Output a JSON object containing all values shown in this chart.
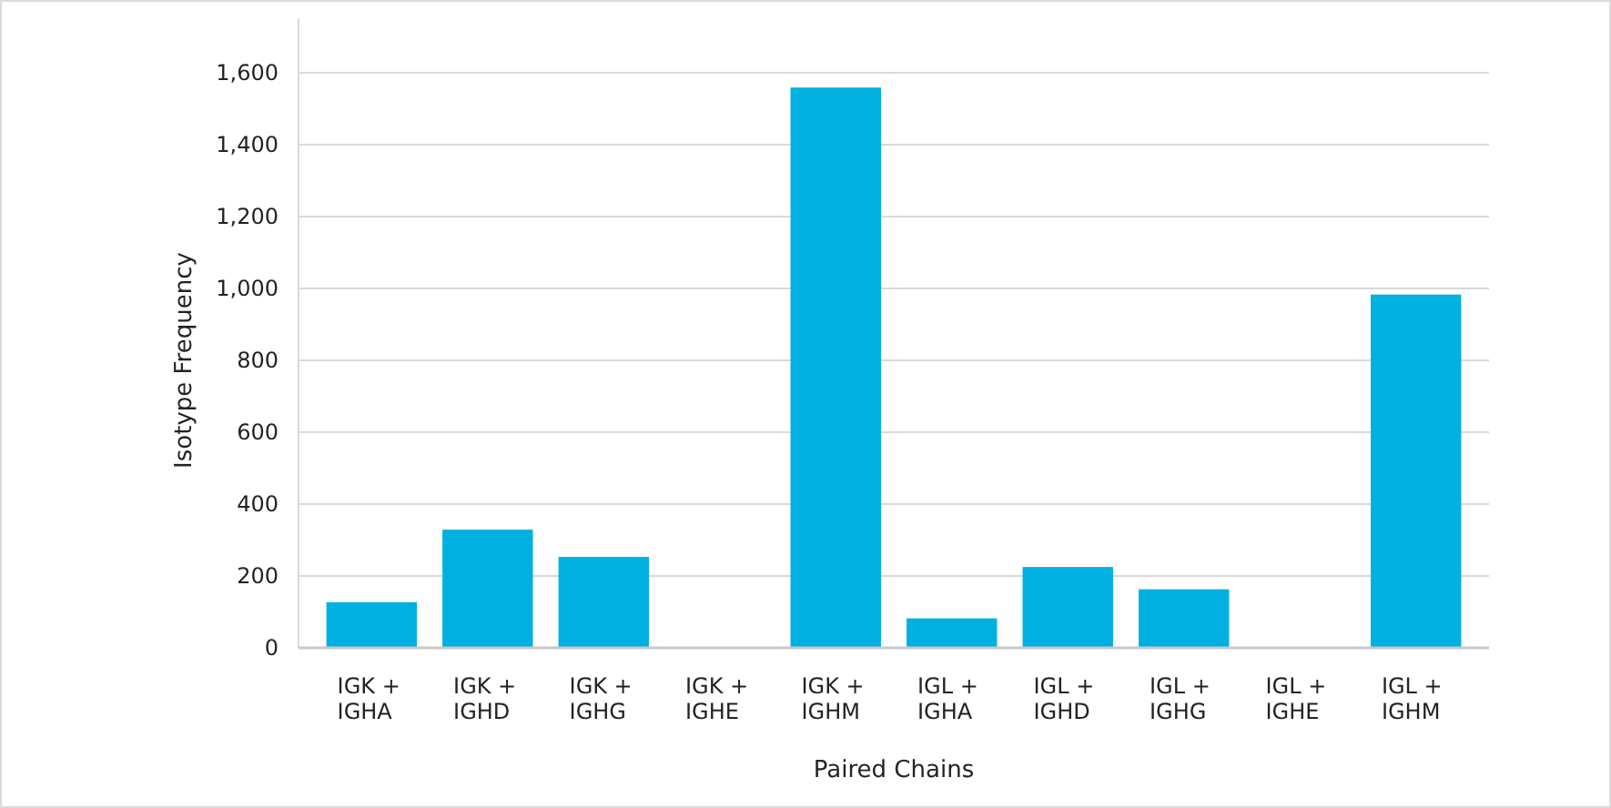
{
  "chart_data": {
    "type": "bar",
    "xlabel": "Paired Chains",
    "ylabel": "Isotype Frequency",
    "categories": [
      "IGK + IGHA",
      "IGK + IGHD",
      "IGK + IGHG",
      "IGK + IGHE",
      "IGK + IGHM",
      "IGL + IGHA",
      "IGL + IGHD",
      "IGL + IGHG",
      "IGL + IGHE",
      "IGL + IGHM"
    ],
    "values": [
      127,
      329,
      253,
      0,
      1559,
      82,
      225,
      163,
      0,
      983
    ],
    "color": "#00b0e0",
    "ylim": [
      0,
      1600
    ],
    "yticks": [
      {
        "value": 0,
        "label": "0"
      },
      {
        "value": 200,
        "label": "200"
      },
      {
        "value": 400,
        "label": "400"
      },
      {
        "value": 600,
        "label": "600"
      },
      {
        "value": 800,
        "label": "800"
      },
      {
        "value": 1000,
        "label": "1,000"
      },
      {
        "value": 1200,
        "label": "1,200"
      },
      {
        "value": 1400,
        "label": "1,400"
      },
      {
        "value": 1600,
        "label": "1,600"
      }
    ],
    "grid": "y"
  }
}
